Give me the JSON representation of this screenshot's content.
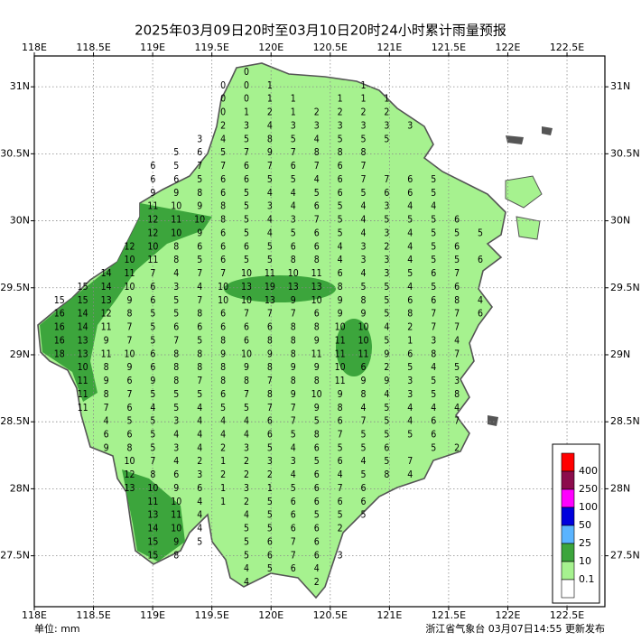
{
  "title": "2025年03月09日20时至03月10日20时24小时累计雨量预报",
  "unit": "单位: mm",
  "issuer": "浙江省气象台 03月07日14:55 更新发布",
  "lon_range": [
    118,
    122.82
  ],
  "lat_range": [
    27.12,
    31.23
  ],
  "lon_ticks": [
    {
      "value": 118,
      "label": "118E"
    },
    {
      "value": 118.5,
      "label": "118.5E"
    },
    {
      "value": 119,
      "label": "119E"
    },
    {
      "value": 119.5,
      "label": "119.5E"
    },
    {
      "value": 120,
      "label": "120E"
    },
    {
      "value": 120.5,
      "label": "120.5E"
    },
    {
      "value": 121,
      "label": "121E"
    },
    {
      "value": 121.5,
      "label": "121.5E"
    },
    {
      "value": 122,
      "label": "122E"
    },
    {
      "value": 122.5,
      "label": "122.5E"
    }
  ],
  "lat_ticks": [
    {
      "value": 31,
      "label": "31N"
    },
    {
      "value": 30.5,
      "label": "30.5N"
    },
    {
      "value": 30,
      "label": "30N"
    },
    {
      "value": 29.5,
      "label": "29.5N"
    },
    {
      "value": 29,
      "label": "29N"
    },
    {
      "value": 28.5,
      "label": "28.5N"
    },
    {
      "value": 28,
      "label": "28N"
    },
    {
      "value": 27.5,
      "label": "27.5N"
    }
  ],
  "legend": {
    "colors": [
      "#ff0000",
      "#8c0c4c",
      "#ff00ff",
      "#0000dd",
      "#5ab4ff",
      "#3ca53c",
      "#a6f28f",
      "#ffffff"
    ],
    "labels": [
      400,
      250,
      100,
      50,
      25,
      10,
      0.1
    ]
  },
  "grid": {
    "rows": [
      [
        null,
        null,
        null,
        null,
        null,
        null,
        null,
        null,
        null,
        null,
        0
      ],
      [
        null,
        null,
        null,
        null,
        null,
        null,
        null,
        null,
        null,
        0,
        0,
        1,
        null,
        null,
        null,
        1
      ],
      [
        null,
        null,
        null,
        null,
        null,
        null,
        null,
        null,
        null,
        0,
        0,
        1,
        1,
        null,
        1,
        1,
        1
      ],
      [
        null,
        null,
        null,
        null,
        null,
        null,
        null,
        null,
        null,
        0,
        1,
        2,
        1,
        2,
        2,
        2,
        2
      ],
      [
        null,
        null,
        null,
        null,
        null,
        null,
        null,
        null,
        null,
        2,
        3,
        4,
        3,
        3,
        3,
        3,
        3,
        3
      ],
      [
        null,
        null,
        null,
        null,
        null,
        null,
        null,
        null,
        3,
        4,
        5,
        8,
        5,
        4,
        5,
        5,
        5
      ],
      [
        null,
        null,
        null,
        null,
        null,
        null,
        null,
        5,
        6,
        5,
        7,
        9,
        7,
        8,
        8,
        8
      ],
      [
        null,
        null,
        null,
        null,
        null,
        null,
        6,
        5,
        7,
        7,
        6,
        7,
        6,
        7,
        6,
        7
      ],
      [
        null,
        null,
        null,
        null,
        null,
        null,
        6,
        6,
        5,
        6,
        6,
        5,
        5,
        4,
        6,
        7,
        7,
        6,
        5
      ],
      [
        null,
        null,
        null,
        null,
        null,
        null,
        9,
        9,
        8,
        6,
        5,
        4,
        4,
        5,
        6,
        5,
        6,
        6,
        5
      ],
      [
        null,
        null,
        null,
        null,
        null,
        null,
        11,
        10,
        9,
        8,
        5,
        3,
        4,
        6,
        5,
        4,
        3,
        4,
        4
      ],
      [
        null,
        null,
        null,
        null,
        null,
        null,
        12,
        11,
        10,
        8,
        5,
        4,
        3,
        7,
        5,
        4,
        5,
        5,
        5,
        6
      ],
      [
        null,
        null,
        null,
        null,
        null,
        null,
        12,
        10,
        9,
        6,
        5,
        4,
        5,
        6,
        5,
        4,
        3,
        4,
        5,
        5,
        5
      ],
      [
        null,
        null,
        null,
        null,
        null,
        12,
        10,
        8,
        6,
        6,
        6,
        5,
        6,
        6,
        4,
        3,
        2,
        4,
        5,
        6
      ],
      [
        null,
        null,
        null,
        null,
        null,
        10,
        11,
        8,
        5,
        6,
        5,
        5,
        8,
        8,
        4,
        3,
        3,
        4,
        5,
        5,
        6
      ],
      [
        null,
        null,
        null,
        null,
        14,
        11,
        7,
        4,
        7,
        7,
        10,
        11,
        10,
        11,
        6,
        4,
        3,
        5,
        6,
        7
      ],
      [
        null,
        null,
        null,
        15,
        14,
        10,
        6,
        3,
        4,
        10,
        13,
        19,
        13,
        13,
        8,
        5,
        5,
        4,
        5,
        6
      ],
      [
        null,
        null,
        15,
        15,
        13,
        9,
        6,
        5,
        7,
        10,
        10,
        13,
        9,
        10,
        9,
        8,
        5,
        6,
        6,
        8,
        4
      ],
      [
        null,
        null,
        16,
        14,
        12,
        8,
        5,
        5,
        8,
        6,
        7,
        7,
        7,
        6,
        9,
        9,
        5,
        8,
        7,
        7,
        6
      ],
      [
        null,
        null,
        16,
        14,
        11,
        7,
        5,
        6,
        6,
        6,
        6,
        6,
        8,
        8,
        10,
        10,
        4,
        2,
        7,
        7
      ],
      [
        null,
        null,
        16,
        13,
        9,
        7,
        5,
        7,
        5,
        8,
        6,
        8,
        8,
        9,
        11,
        10,
        5,
        1,
        3,
        4
      ],
      [
        null,
        null,
        18,
        13,
        11,
        10,
        6,
        8,
        8,
        9,
        10,
        9,
        8,
        11,
        11,
        11,
        9,
        6,
        8,
        7
      ],
      [
        null,
        null,
        null,
        10,
        8,
        9,
        6,
        8,
        8,
        8,
        9,
        8,
        9,
        9,
        10,
        6,
        2,
        5,
        4,
        5
      ],
      [
        null,
        null,
        null,
        11,
        9,
        6,
        9,
        8,
        7,
        8,
        8,
        7,
        8,
        8,
        11,
        9,
        9,
        3,
        5,
        3
      ],
      [
        null,
        null,
        null,
        11,
        8,
        7,
        5,
        5,
        5,
        6,
        7,
        8,
        9,
        10,
        9,
        8,
        4,
        3,
        5,
        8
      ],
      [
        null,
        null,
        null,
        11,
        7,
        6,
        4,
        5,
        4,
        5,
        5,
        7,
        7,
        9,
        8,
        4,
        5,
        4,
        4,
        4
      ],
      [
        null,
        null,
        null,
        null,
        4,
        5,
        5,
        3,
        4,
        4,
        4,
        6,
        7,
        5,
        6,
        7,
        5,
        4,
        6,
        7
      ],
      [
        null,
        null,
        null,
        null,
        6,
        6,
        5,
        4,
        4,
        4,
        4,
        6,
        5,
        8,
        7,
        5,
        5,
        5,
        6
      ],
      [
        null,
        null,
        null,
        null,
        9,
        8,
        5,
        3,
        4,
        2,
        3,
        5,
        4,
        6,
        5,
        5,
        6,
        null,
        5,
        2
      ],
      [
        null,
        null,
        null,
        null,
        null,
        10,
        7,
        4,
        2,
        1,
        2,
        3,
        3,
        5,
        6,
        4,
        5,
        7
      ],
      [
        null,
        null,
        null,
        null,
        null,
        12,
        8,
        6,
        3,
        2,
        2,
        2,
        4,
        6,
        4,
        5,
        8,
        4
      ],
      [
        null,
        null,
        null,
        null,
        null,
        13,
        10,
        9,
        6,
        1,
        3,
        1,
        5,
        6,
        7,
        6
      ],
      [
        null,
        null,
        null,
        null,
        null,
        null,
        11,
        10,
        4,
        1,
        2,
        5,
        6,
        6,
        6,
        6
      ],
      [
        null,
        null,
        null,
        null,
        null,
        null,
        13,
        11,
        4,
        null,
        4,
        5,
        6,
        5,
        5,
        5
      ],
      [
        null,
        null,
        null,
        null,
        null,
        null,
        14,
        10,
        4,
        null,
        5,
        5,
        6,
        6,
        2
      ],
      [
        null,
        null,
        null,
        null,
        null,
        null,
        15,
        9,
        5,
        null,
        5,
        6,
        7,
        6
      ],
      [
        null,
        null,
        null,
        null,
        null,
        null,
        15,
        8,
        null,
        null,
        5,
        6,
        7,
        6,
        3
      ],
      [
        null,
        null,
        null,
        null,
        null,
        null,
        null,
        null,
        null,
        null,
        4,
        5,
        6,
        4
      ],
      [
        null,
        null,
        null,
        null,
        null,
        null,
        null,
        null,
        null,
        null,
        4,
        null,
        null,
        2
      ]
    ]
  }
}
